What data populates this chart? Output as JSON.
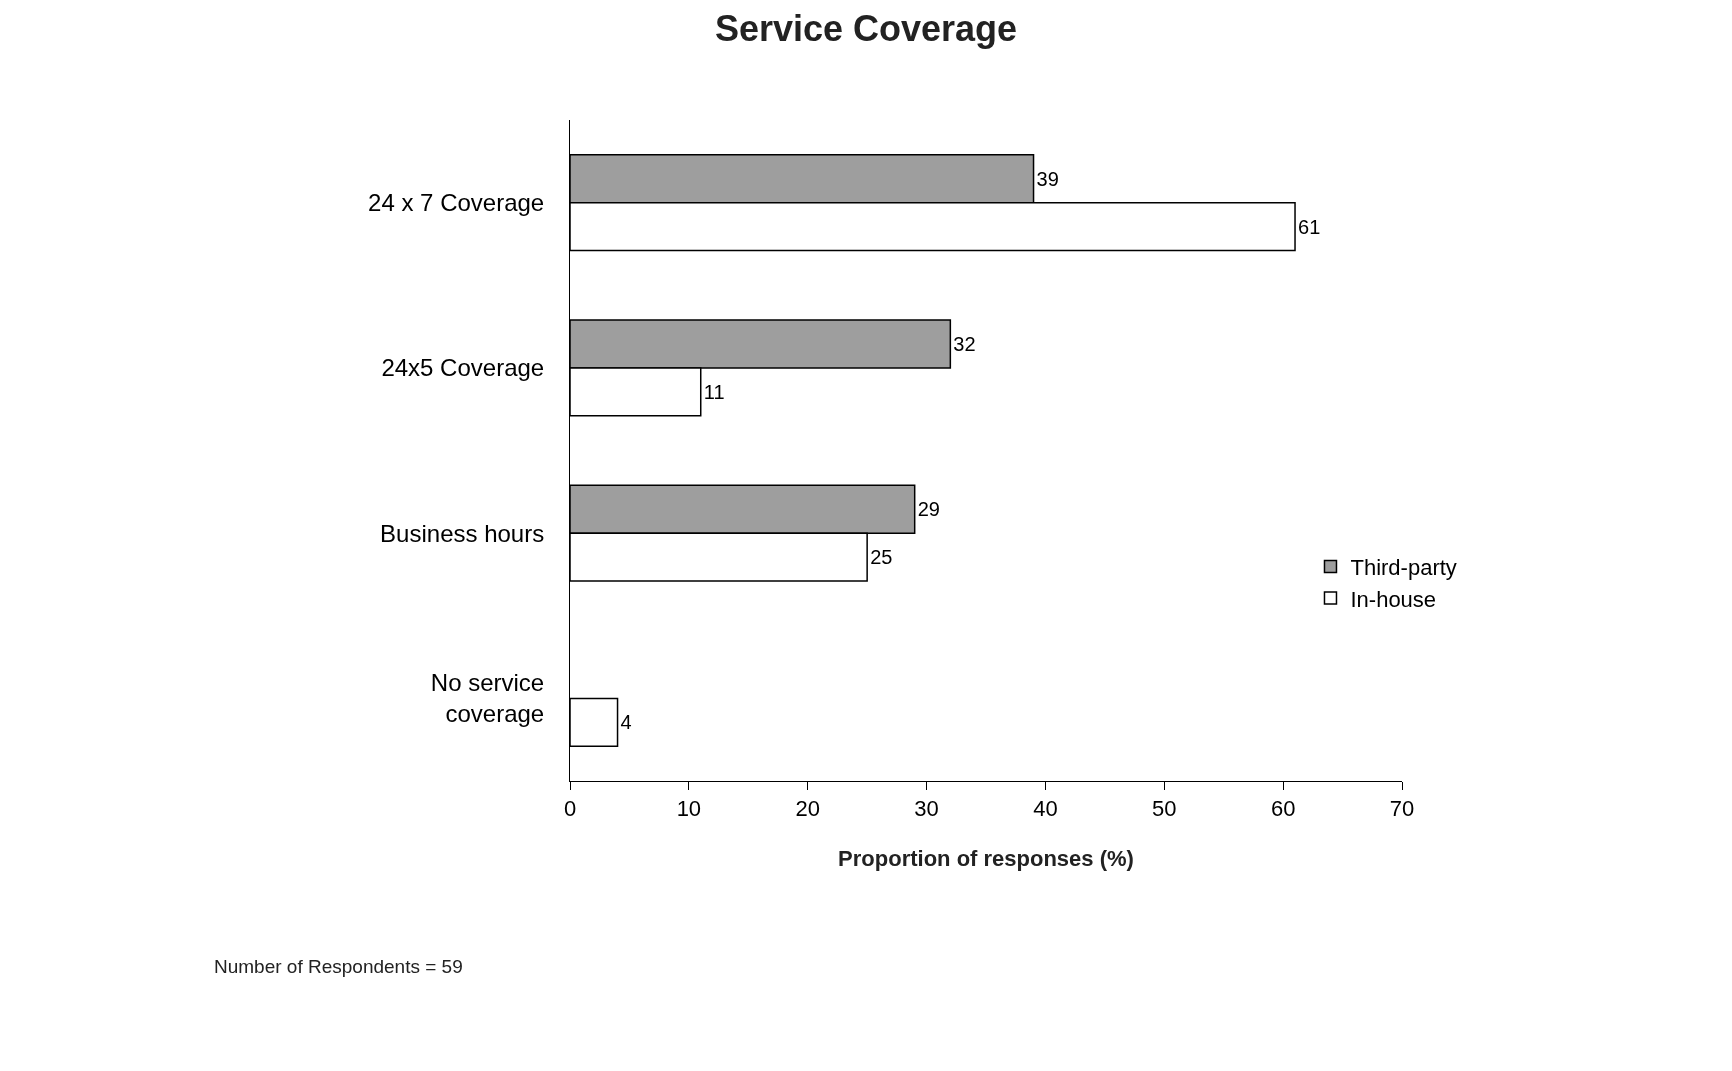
{
  "chart_data": {
    "type": "bar",
    "orientation": "horizontal",
    "title": "Service Coverage",
    "xlabel": "Proportion of responses (%)",
    "categories": [
      "24 x 7 Coverage",
      "24x5 Coverage",
      "Business hours",
      "No service\ncoverage"
    ],
    "series": [
      {
        "name": "Third-party",
        "color": "#9e9e9e",
        "values": [
          39,
          32,
          29,
          null
        ]
      },
      {
        "name": "In-house",
        "color": "#ffffff",
        "values": [
          61,
          11,
          25,
          4
        ]
      }
    ],
    "xlim": [
      0,
      70
    ],
    "xticks": [
      0,
      10,
      20,
      30,
      40,
      50,
      60,
      70
    ],
    "legend": "right",
    "data_labels": true,
    "annotations": [
      "Number of Respondents = 59"
    ]
  }
}
